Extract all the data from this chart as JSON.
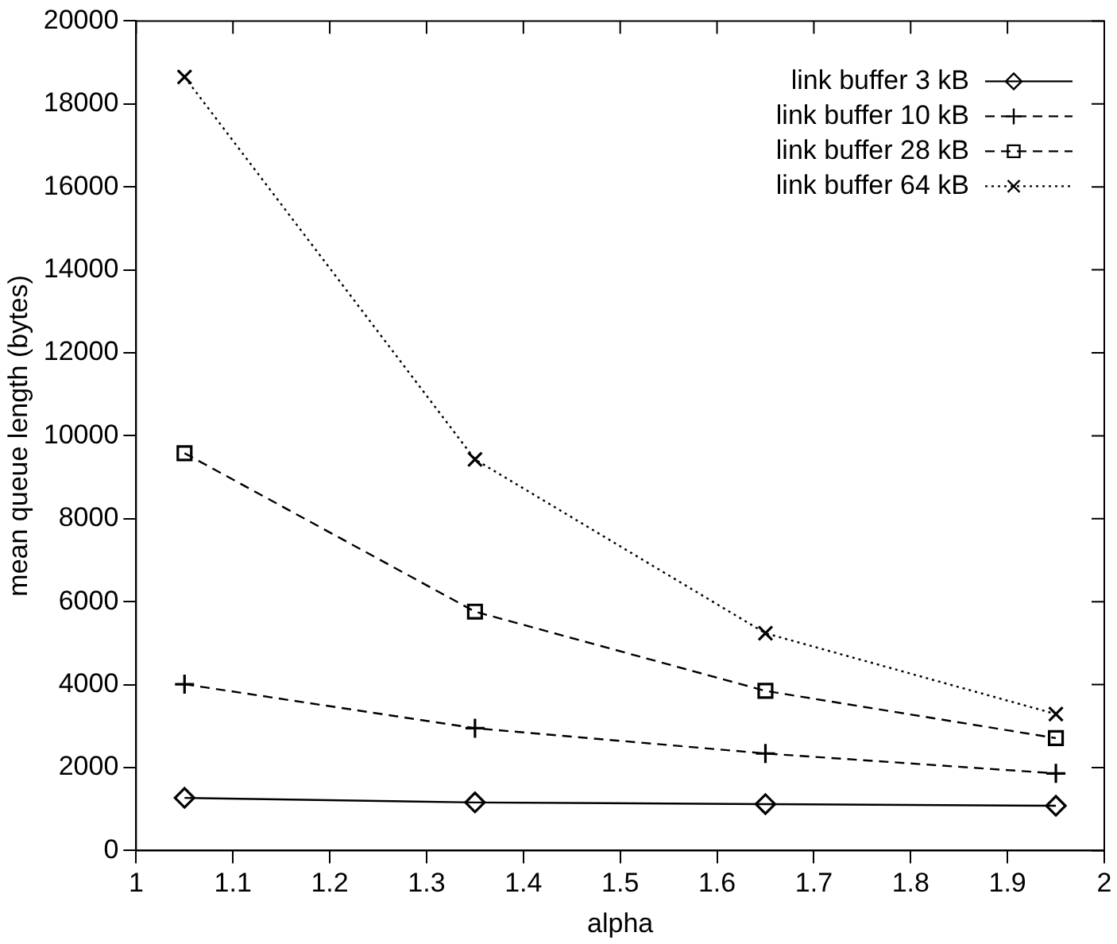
{
  "chart_data": {
    "type": "line",
    "xlabel": "alpha",
    "ylabel": "mean queue length (bytes)",
    "x": [
      1.05,
      1.35,
      1.65,
      1.95
    ],
    "series": [
      {
        "name": "link buffer 3 kB",
        "color": "#000000",
        "marker": "diamond",
        "line_style": "solid",
        "values": [
          1270,
          1160,
          1120,
          1080
        ]
      },
      {
        "name": "link buffer 10 kB",
        "color": "#000000",
        "marker": "cross",
        "line_style": "dashed",
        "values": [
          4010,
          2950,
          2340,
          1860
        ]
      },
      {
        "name": "link buffer 28 kB",
        "color": "#000000",
        "marker": "square",
        "line_style": "dashed",
        "values": [
          9580,
          5760,
          3850,
          2710
        ]
      },
      {
        "name": "link buffer 64 kB",
        "color": "#000000",
        "marker": "x",
        "line_style": "dotted",
        "values": [
          18650,
          9430,
          5240,
          3290
        ]
      }
    ],
    "xlim": [
      1,
      2
    ],
    "xticks": [
      1,
      1.1,
      1.2,
      1.3,
      1.4,
      1.5,
      1.6,
      1.7,
      1.8,
      1.9,
      2
    ],
    "ylim": [
      0,
      20000
    ],
    "yticks": [
      0,
      2000,
      4000,
      6000,
      8000,
      10000,
      12000,
      14000,
      16000,
      18000,
      20000
    ],
    "grid": false,
    "legend": "top right"
  }
}
